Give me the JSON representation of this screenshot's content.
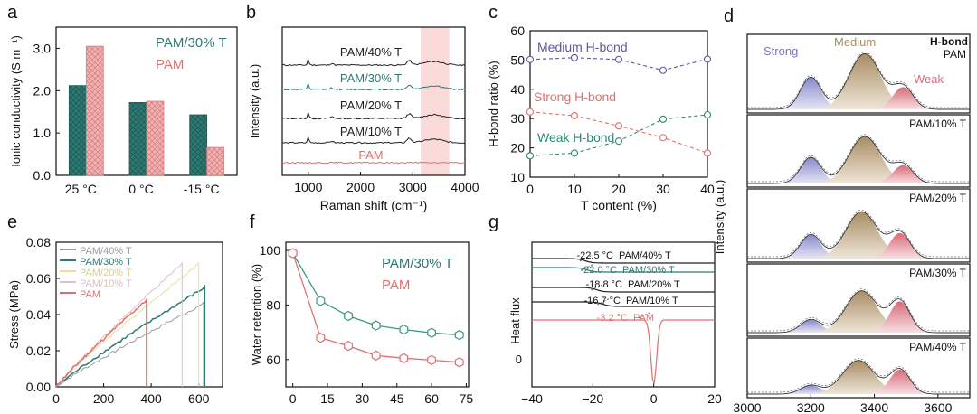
{
  "chart_data": [
    {
      "panel": "a",
      "type": "bar",
      "ylabel": "Ionic conductivity (S m⁻¹)",
      "categories": [
        "25 °C",
        "0 °C",
        "-15 °C"
      ],
      "ylim": [
        0,
        3.5
      ],
      "yticks": [
        "0.0",
        "1.0",
        "2.0",
        "3.0"
      ],
      "series": [
        {
          "name": "PAM/30% T",
          "values": [
            2.12,
            1.72,
            1.43
          ],
          "color": "#2c7a72"
        },
        {
          "name": "PAM",
          "values": [
            3.05,
            1.75,
            0.66
          ],
          "color": "#e59a9a"
        }
      ]
    },
    {
      "panel": "b",
      "type": "line",
      "xlabel": "Raman shift (cm⁻¹)",
      "ylabel": "Intensity (a.u.)",
      "xlim": [
        500,
        4000
      ],
      "xticks": [
        "1000",
        "2000",
        "3000",
        "4000"
      ],
      "highlight_range": [
        3150,
        3700
      ],
      "series": [
        "PAM/40% T",
        "PAM/30% T",
        "PAM/20% T",
        "PAM/10% T",
        "PAM"
      ]
    },
    {
      "panel": "c",
      "type": "line",
      "xlabel": "T content (%)",
      "ylabel": "H-bond ratio (%)",
      "x": [
        0,
        10,
        20,
        30,
        40
      ],
      "xlim": [
        0,
        40
      ],
      "ylim": [
        10,
        60
      ],
      "xticks": [
        "0",
        "10",
        "20",
        "30",
        "40"
      ],
      "yticks": [
        "10",
        "20",
        "30",
        "40",
        "50",
        "60"
      ],
      "series": [
        {
          "name": "Medium H-bond",
          "values": [
            50.2,
            50.8,
            50.2,
            46.5,
            50.3
          ],
          "color": "#5a5a9e"
        },
        {
          "name": "Strong H-bond",
          "values": [
            32.3,
            31.0,
            27.5,
            23.5,
            18.2
          ],
          "color": "#e07070"
        },
        {
          "name": "Weak H-bond",
          "values": [
            17.3,
            18.2,
            22.3,
            29.8,
            31.3
          ],
          "color": "#2c8a74"
        }
      ]
    },
    {
      "panel": "d",
      "type": "area",
      "xlabel": "",
      "ylabel": "Intensity (a.u.)",
      "xlim": [
        3000,
        3700
      ],
      "xticks": [
        "3000",
        "3200",
        "3400",
        "3600"
      ],
      "legend": [
        "Strong",
        "Medium",
        "Weak"
      ],
      "legend_title": "H-bond",
      "series": [
        {
          "name": "PAM",
          "peaks": {
            "strong": [
              3200,
              0.55
            ],
            "medium": [
              3370,
              0.95
            ],
            "weak": [
              3490,
              0.38
            ]
          }
        },
        {
          "name": "PAM/10% T",
          "peaks": {
            "strong": [
              3200,
              0.5
            ],
            "medium": [
              3370,
              0.9
            ],
            "weak": [
              3490,
              0.35
            ]
          }
        },
        {
          "name": "PAM/20% T",
          "peaks": {
            "strong": [
              3200,
              0.45
            ],
            "medium": [
              3360,
              0.88
            ],
            "weak": [
              3480,
              0.48
            ]
          }
        },
        {
          "name": "PAM/30% T",
          "peaks": {
            "strong": [
              3200,
              0.25
            ],
            "medium": [
              3360,
              0.8
            ],
            "weak": [
              3480,
              0.6
            ]
          }
        },
        {
          "name": "PAM/40% T",
          "peaks": {
            "strong": [
              3200,
              0.22
            ],
            "medium": [
              3350,
              0.85
            ],
            "weak": [
              3480,
              0.62
            ]
          }
        }
      ]
    },
    {
      "panel": "e",
      "type": "line",
      "xlabel": "",
      "ylabel": "Stress (MPa)",
      "xlim": [
        0,
        700
      ],
      "ylim": [
        0,
        0.08
      ],
      "xticks": [
        "0",
        "200",
        "400",
        "600"
      ],
      "yticks": [
        "0.00",
        "0.02",
        "0.04",
        "0.06",
        "0.08"
      ],
      "series": [
        {
          "name": "PAM/40% T",
          "strain": 620,
          "stress": 0.046,
          "color": "#9a9aa0"
        },
        {
          "name": "PAM/30% T",
          "strain": 625,
          "stress": 0.055,
          "color": "#2c7a72"
        },
        {
          "name": "PAM/20% T",
          "strain": 600,
          "stress": 0.068,
          "color": "#e8e0a0"
        },
        {
          "name": "PAM/10% T",
          "strain": 530,
          "stress": 0.068,
          "color": "#e0c0c0"
        },
        {
          "name": "PAM",
          "strain": 380,
          "stress": 0.048,
          "color": "#e07070"
        }
      ]
    },
    {
      "panel": "f",
      "type": "line",
      "xlabel": "",
      "ylabel": "Water retention (%)",
      "x": [
        0,
        12,
        24,
        36,
        48,
        60,
        72
      ],
      "xlim": [
        -3,
        76
      ],
      "ylim": [
        50,
        103
      ],
      "xticks": [
        "0",
        "15",
        "30",
        "45",
        "60",
        "75"
      ],
      "yticks": [
        "60",
        "80",
        "100"
      ],
      "series": [
        {
          "name": "PAM/30% T",
          "values": [
            99,
            81.5,
            76,
            72.5,
            71,
            69.8,
            69
          ],
          "color": "#3a9a86"
        },
        {
          "name": "PAM",
          "values": [
            99,
            68,
            65,
            61.5,
            60.5,
            59.8,
            59
          ],
          "color": "#e07070"
        }
      ]
    },
    {
      "panel": "g",
      "type": "line",
      "xlabel": "",
      "ylabel": "Heat flux",
      "xlim": [
        -40,
        20
      ],
      "xticks": [
        "−40",
        "−20",
        "0",
        "20"
      ],
      "ytick": "0",
      "series": [
        {
          "name": "PAM/40% T",
          "tg": "-22.5 °C",
          "color": "#222222"
        },
        {
          "name": "PAM/30% T",
          "tg": "-22.0 °C",
          "color": "#2c7a72"
        },
        {
          "name": "PAM/20% T",
          "tg": "-18.8 °C",
          "color": "#222222"
        },
        {
          "name": "PAM/10% T",
          "tg": "-16.7 °C",
          "color": "#222222"
        },
        {
          "name": "PAM",
          "tg": "-3.2 °C",
          "color": "#e07070"
        }
      ]
    }
  ],
  "panel_labels": [
    "a",
    "b",
    "c",
    "d",
    "e",
    "f",
    "g"
  ]
}
